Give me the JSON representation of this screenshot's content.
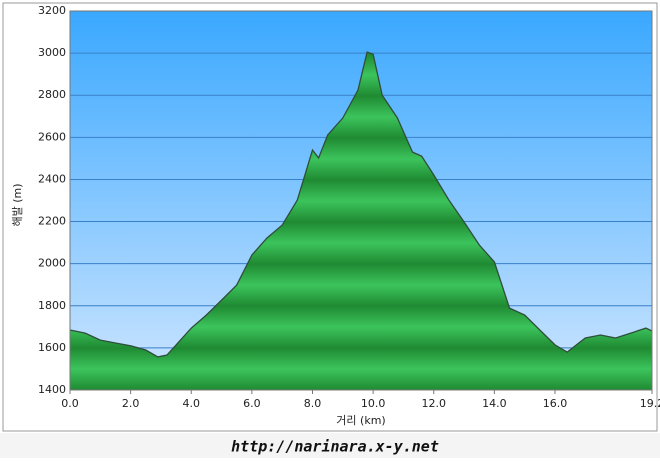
{
  "chart_data": {
    "type": "area",
    "ylabel": "해발 (m)",
    "xlabel": "거리 (km)",
    "footer": "http://narinara.x-y.net",
    "x": [
      0,
      0.5,
      1.0,
      1.5,
      2.0,
      2.5,
      2.9,
      3.2,
      3.5,
      4.0,
      4.5,
      5.0,
      5.5,
      6.0,
      6.5,
      7.0,
      7.5,
      8.0,
      8.2,
      8.5,
      9.0,
      9.5,
      9.8,
      10.0,
      10.3,
      10.8,
      11.3,
      11.6,
      12.0,
      12.5,
      13.0,
      13.5,
      14.0,
      14.5,
      15.0,
      15.5,
      16.0,
      16.4,
      17.0,
      17.5,
      18.0,
      18.5,
      19.0,
      19.2
    ],
    "values": [
      1685,
      1670,
      1637,
      1623,
      1610,
      1590,
      1557,
      1566,
      1614,
      1694,
      1756,
      1827,
      1898,
      2041,
      2122,
      2183,
      2302,
      2540,
      2502,
      2611,
      2692,
      2825,
      3005,
      2995,
      2800,
      2692,
      2530,
      2511,
      2421,
      2302,
      2198,
      2089,
      2008,
      1789,
      1756,
      1685,
      1614,
      1580,
      1647,
      1661,
      1647,
      1670,
      1694,
      1680
    ],
    "color": "#2aa84a",
    "xlim": [
      0,
      19.2
    ],
    "xticks": [
      {
        "value": 0,
        "label": "0.0"
      },
      {
        "value": 2,
        "label": "2.0"
      },
      {
        "value": 4,
        "label": "4.0"
      },
      {
        "value": 6,
        "label": "6.0"
      },
      {
        "value": 8,
        "label": "8.0"
      },
      {
        "value": 10,
        "label": "10.0"
      },
      {
        "value": 12,
        "label": "12.0"
      },
      {
        "value": 14,
        "label": "14.0"
      },
      {
        "value": 16,
        "label": "16.0"
      },
      {
        "value": 19.2,
        "label": "19.2"
      }
    ],
    "ylim": [
      1400,
      3200
    ],
    "yticks": [
      1400,
      1600,
      1800,
      2000,
      2200,
      2400,
      2600,
      2800,
      3000,
      3200
    ],
    "grid": true
  }
}
